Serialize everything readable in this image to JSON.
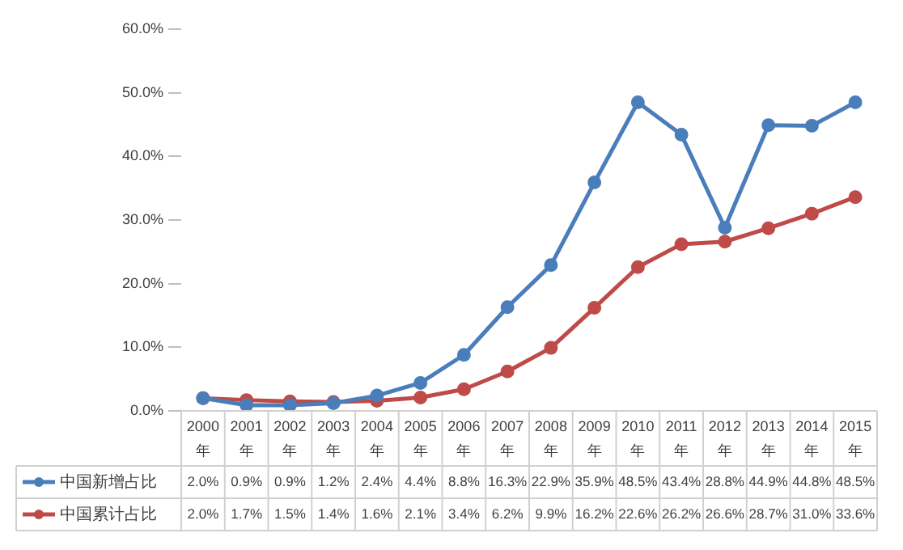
{
  "chart_data": {
    "type": "line",
    "categories": [
      "2000年",
      "2001年",
      "2002年",
      "2003年",
      "2004年",
      "2005年",
      "2006年",
      "2007年",
      "2008年",
      "2009年",
      "2010年",
      "2011年",
      "2012年",
      "2013年",
      "2014年",
      "2015年"
    ],
    "series": [
      {
        "name": "中国新增占比",
        "color": "#4a7ebb",
        "values": [
          2.0,
          0.9,
          0.9,
          1.2,
          2.4,
          4.4,
          8.8,
          16.3,
          22.9,
          35.9,
          48.5,
          43.4,
          28.8,
          44.9,
          44.8,
          48.5
        ],
        "value_labels": [
          "2.0%",
          "0.9%",
          "0.9%",
          "1.2%",
          "2.4%",
          "4.4%",
          "8.8%",
          "16.3%",
          "22.9%",
          "35.9%",
          "48.5%",
          "43.4%",
          "28.8%",
          "44.9%",
          "44.8%",
          "48.5%"
        ]
      },
      {
        "name": "中国累计占比",
        "color": "#be4b48",
        "values": [
          2.0,
          1.7,
          1.5,
          1.4,
          1.6,
          2.1,
          3.4,
          6.2,
          9.9,
          16.2,
          22.6,
          26.2,
          26.6,
          28.7,
          31.0,
          33.6
        ],
        "value_labels": [
          "2.0%",
          "1.7%",
          "1.5%",
          "1.4%",
          "1.6%",
          "2.1%",
          "3.4%",
          "6.2%",
          "9.9%",
          "16.2%",
          "22.6%",
          "26.2%",
          "26.6%",
          "28.7%",
          "31.0%",
          "33.6%"
        ]
      }
    ],
    "ylim": [
      0,
      60
    ],
    "yticks": [
      {
        "value": 0,
        "label": "0.0%"
      },
      {
        "value": 10,
        "label": "10.0%"
      },
      {
        "value": 20,
        "label": "20.0%"
      },
      {
        "value": 30,
        "label": "30.0%"
      },
      {
        "value": 40,
        "label": "40.0%"
      },
      {
        "value": 50,
        "label": "50.0%"
      },
      {
        "value": 60,
        "label": "60.0%"
      }
    ],
    "grid": false,
    "legend": "bottom",
    "marker": "circle",
    "line_style": "solid"
  }
}
